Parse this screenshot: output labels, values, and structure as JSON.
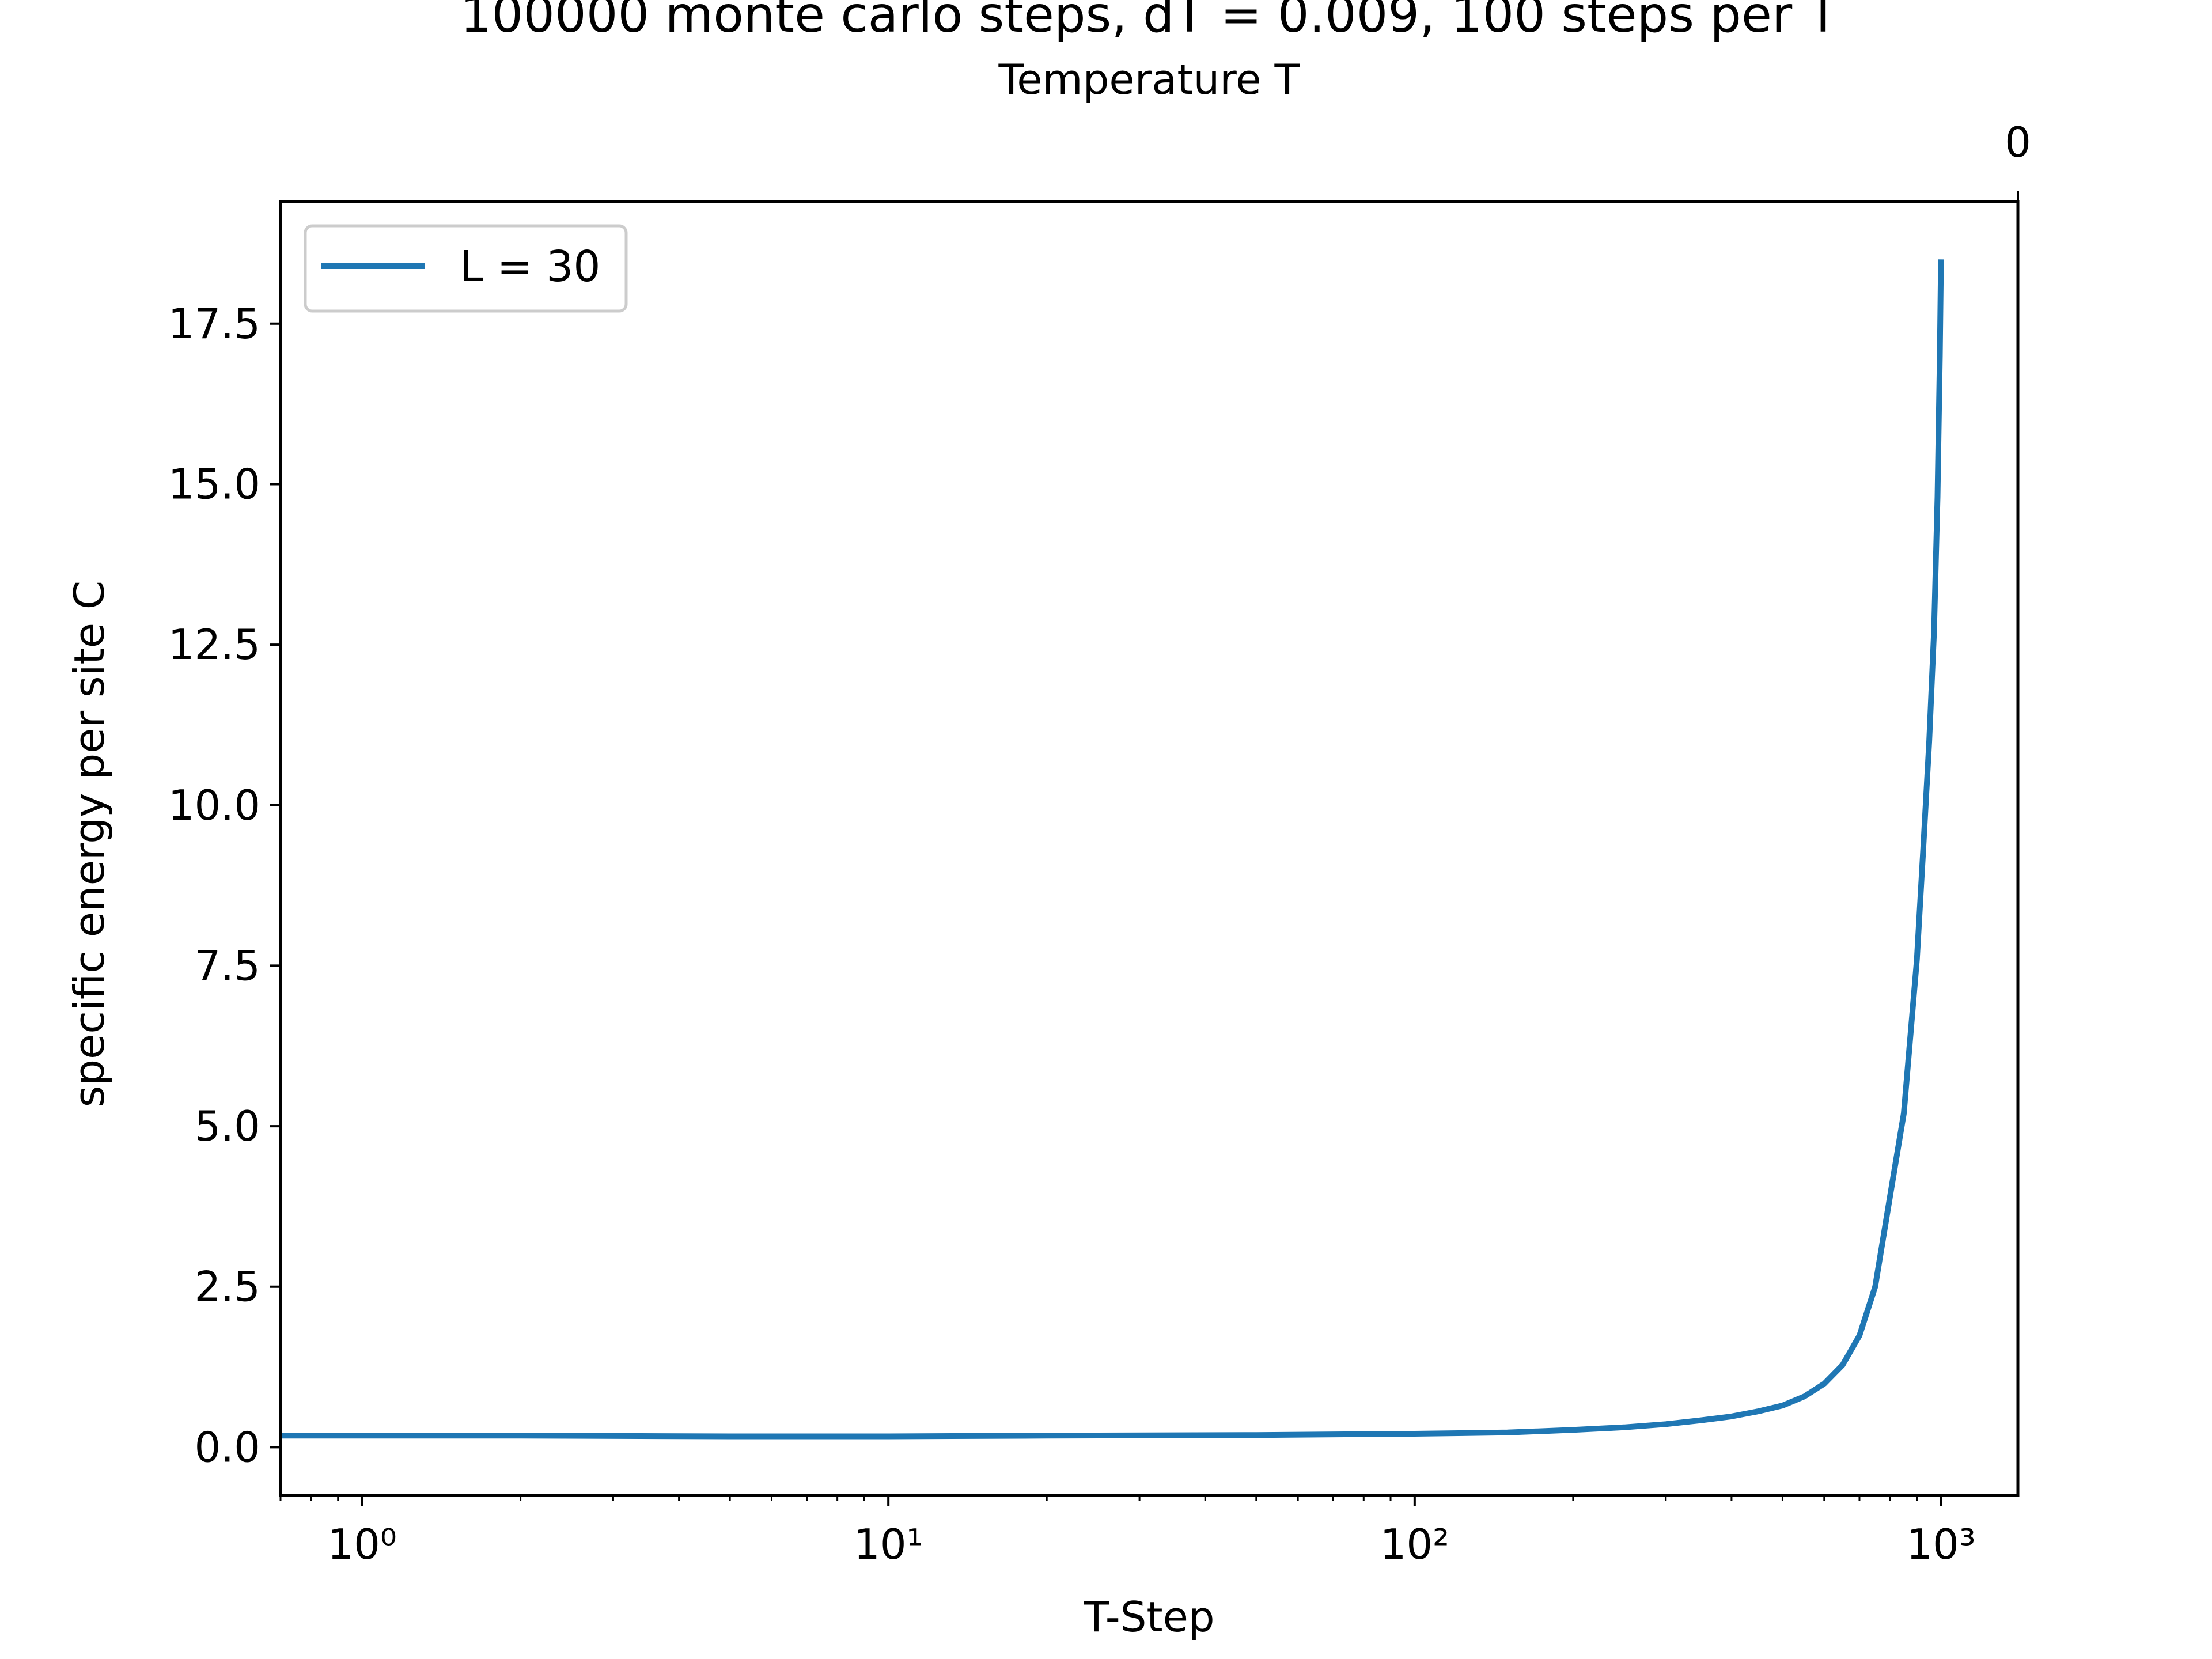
{
  "chart_data": {
    "type": "line",
    "title": "100000 monte carlo steps, dT = 0.009, 100 steps per T",
    "top_axis_label": "Temperature T",
    "top_axis_ticks": [
      {
        "x": 1000,
        "label": "0"
      }
    ],
    "xlabel": "T-Step",
    "ylabel": "specific energy per site C",
    "xscale": "log",
    "xlim": [
      0.7,
      1400
    ],
    "ylim": [
      -0.75,
      19.4
    ],
    "x_ticks": [
      {
        "value": 1,
        "label": "10⁰"
      },
      {
        "value": 10,
        "label": "10¹"
      },
      {
        "value": 100,
        "label": "10²"
      },
      {
        "value": 1000,
        "label": "10³"
      }
    ],
    "y_ticks": [
      0.0,
      2.5,
      5.0,
      7.5,
      10.0,
      12.5,
      15.0,
      17.5
    ],
    "y_tick_labels": [
      "0.0",
      "2.5",
      "5.0",
      "7.5",
      "10.0",
      "12.5",
      "15.0",
      "17.5"
    ],
    "legend": {
      "placement": "upper-left",
      "entries": [
        {
          "label": "L = 30",
          "color": "#1f77b4"
        }
      ]
    },
    "grid": false,
    "series": [
      {
        "name": "L = 30",
        "color": "#1f77b4",
        "x": [
          0.7,
          1,
          2,
          5,
          10,
          20,
          50,
          100,
          150,
          200,
          250,
          300,
          350,
          400,
          450,
          500,
          550,
          600,
          650,
          700,
          750,
          800,
          850,
          900,
          925,
          950,
          970,
          985,
          995,
          1000
        ],
        "y": [
          0.18,
          0.18,
          0.18,
          0.17,
          0.17,
          0.18,
          0.19,
          0.21,
          0.23,
          0.27,
          0.31,
          0.36,
          0.42,
          0.48,
          0.56,
          0.65,
          0.79,
          0.99,
          1.28,
          1.74,
          2.5,
          3.9,
          5.2,
          7.6,
          9.3,
          11.0,
          12.7,
          14.8,
          17.0,
          18.5
        ]
      }
    ]
  }
}
